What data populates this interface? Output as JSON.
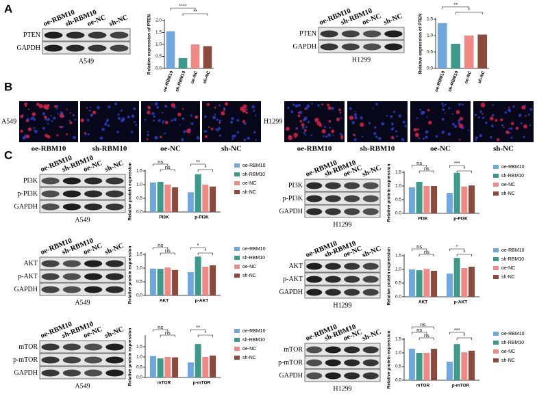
{
  "panel_labels": [
    "A",
    "B",
    "C"
  ],
  "blots": [
    {
      "columns": [
        "oe-RBM10",
        "sh-RBM10",
        "oe-NC",
        "sh-NC"
      ],
      "rows": [
        "PTEN",
        "GAPDH"
      ],
      "caption": "A549"
    },
    {
      "columns": [
        "oe-RBM10",
        "sh-RBM10",
        "oe-NC",
        "sh-NC"
      ],
      "rows": [
        "PTEN",
        "GAPDH"
      ],
      "caption": "H1299"
    },
    {
      "columns": [
        "oe-RBM10",
        "sh-RBM10",
        "oe-NC",
        "sh-NC"
      ],
      "rows": [
        "PI3K",
        "p-PI3K",
        "GAPDH"
      ],
      "caption": "A549"
    },
    {
      "columns": [
        "oe-RBM10",
        "sh-RBM10",
        "oe-NC",
        "sh-NC"
      ],
      "rows": [
        "PI3K",
        "p-PI3K",
        "GAPDH"
      ],
      "caption": "H1299"
    },
    {
      "columns": [
        "oe-RBM10",
        "sh-RBM10",
        "oe-NC",
        "sh-NC"
      ],
      "rows": [
        "AKT",
        "p-AKT",
        "GAPDH"
      ],
      "caption": "A549"
    },
    {
      "columns": [
        "oe-RBM10",
        "sh-RBM10",
        "oe-NC",
        "sh-NC"
      ],
      "rows": [
        "AKT",
        "p-AKT",
        "GAPDH"
      ],
      "caption": "H1299"
    },
    {
      "columns": [
        "oe-RBM10",
        "sh-RBM10",
        "oe-NC",
        "sh-NC"
      ],
      "rows": [
        "mTOR",
        "p-mTOR",
        "GAPDH"
      ],
      "caption": "A549"
    },
    {
      "columns": [
        "oe-RBM10",
        "sh-RBM10",
        "oe-NC",
        "sh-NC"
      ],
      "rows": [
        "mTOR",
        "p-mTOR",
        "GAPDH"
      ],
      "caption": "H1299"
    }
  ],
  "fluorescence": [
    {
      "cell_line": "A549",
      "labels": [
        "oe-RBM10",
        "sh-RBM10",
        "oe-NC",
        "sh-NC"
      ]
    },
    {
      "cell_line": "H1299",
      "labels": [
        "oe-RBM10",
        "sh-RBM10",
        "oe-NC",
        "sh-NC"
      ]
    }
  ],
  "chart_data": [
    {
      "type": "bar",
      "ylabel": "Relative expression of PTEN",
      "categories": [
        "oe-RBM10",
        "sh-RBM10",
        "oe-NC",
        "sh-NC"
      ],
      "values": [
        1.55,
        0.43,
        1.0,
        0.93
      ],
      "colors": [
        "#6fa8dc",
        "#3d9a8b",
        "#f08a84",
        "#8b4a3c"
      ],
      "ylim": [
        0,
        2
      ],
      "yticks": [
        {
          "value": 0,
          "label": "0.0"
        },
        0.5,
        {
          "value": 1,
          "label": "1.0"
        },
        1.5,
        {
          "value": 2,
          "label": "2.0"
        }
      ],
      "annotations": [
        "****",
        "**"
      ]
    },
    {
      "type": "bar",
      "ylabel": "Relative expression of PTEN",
      "categories": [
        "oe-RBM10",
        "sh-RBM10",
        "oe-NC",
        "sh-NC"
      ],
      "values": [
        1.38,
        0.75,
        1.0,
        1.03
      ],
      "colors": [
        "#6fa8dc",
        "#3d9a8b",
        "#f08a84",
        "#8b4a3c"
      ],
      "ylim": [
        0,
        1.5
      ],
      "yticks": [
        {
          "value": 0,
          "label": "0.0"
        },
        0.5,
        {
          "value": 1,
          "label": "1.0"
        },
        1.5
      ],
      "annotations": [
        "**",
        "*"
      ]
    },
    {
      "type": "bar",
      "ylabel": "Relative protein expression",
      "categories": [
        "PI3K",
        "p-PI3K"
      ],
      "series": [
        {
          "name": "oe-RBM10",
          "color": "#6fa8dc",
          "values": [
            1.08,
            0.72
          ]
        },
        {
          "name": "sh-RBM10",
          "color": "#3d9a8b",
          "values": [
            1.1,
            1.38
          ]
        },
        {
          "name": "oe-NC",
          "color": "#f08a84",
          "values": [
            1.0,
            1.0
          ]
        },
        {
          "name": "sh-NC",
          "color": "#8b4a3c",
          "values": [
            0.9,
            0.93
          ]
        }
      ],
      "ylim": [
        0,
        1.5
      ],
      "yticks": [
        {
          "value": 0,
          "label": "0.0"
        },
        0.5,
        {
          "value": 1,
          "label": "1.0"
        },
        1.5
      ],
      "annotations": [
        "ns",
        "ns",
        "**",
        "*"
      ]
    },
    {
      "type": "bar",
      "ylabel": "Relative protein expression",
      "categories": [
        "PI3K",
        "p-PI3K"
      ],
      "series": [
        {
          "name": "oe-RBM10",
          "color": "#6fa8dc",
          "values": [
            0.95,
            0.75
          ]
        },
        {
          "name": "sh-RBM10",
          "color": "#3d9a8b",
          "values": [
            1.15,
            1.48
          ]
        },
        {
          "name": "oe-NC",
          "color": "#f08a84",
          "values": [
            1.0,
            0.98
          ]
        },
        {
          "name": "sh-NC",
          "color": "#8b4a3c",
          "values": [
            1.0,
            1.02
          ]
        }
      ],
      "ylim": [
        0,
        1.5
      ],
      "yticks": [
        {
          "value": 0,
          "label": "0.0"
        },
        0.5,
        {
          "value": 1,
          "label": "1.0"
        },
        1.5
      ],
      "annotations": [
        "ns",
        "ns",
        "***",
        "*"
      ]
    },
    {
      "type": "bar",
      "ylabel": "Relative protein expression",
      "categories": [
        "AKT",
        "p-AKT"
      ],
      "series": [
        {
          "name": "oe-RBM10",
          "color": "#6fa8dc",
          "values": [
            0.98,
            0.85
          ]
        },
        {
          "name": "sh-RBM10",
          "color": "#3d9a8b",
          "values": [
            0.97,
            1.42
          ]
        },
        {
          "name": "oe-NC",
          "color": "#f08a84",
          "values": [
            1.02,
            1.05
          ]
        },
        {
          "name": "sh-NC",
          "color": "#8b4a3c",
          "values": [
            0.93,
            1.1
          ]
        }
      ],
      "ylim": [
        0,
        1.5
      ],
      "yticks": [
        {
          "value": 0,
          "label": "0.0"
        },
        0.5,
        {
          "value": 1,
          "label": "1.0"
        },
        1.5
      ],
      "annotations": [
        "ns",
        "ns",
        "*",
        "*"
      ]
    },
    {
      "type": "bar",
      "ylabel": "Relative protein expression",
      "categories": [
        "AKT",
        "p-AKT"
      ],
      "series": [
        {
          "name": "oe-RBM10",
          "color": "#6fa8dc",
          "values": [
            1.0,
            0.85
          ]
        },
        {
          "name": "sh-RBM10",
          "color": "#3d9a8b",
          "values": [
            0.97,
            1.42
          ]
        },
        {
          "name": "oe-NC",
          "color": "#f08a84",
          "values": [
            1.02,
            1.05
          ]
        },
        {
          "name": "sh-NC",
          "color": "#8b4a3c",
          "values": [
            0.95,
            1.1
          ]
        }
      ],
      "ylim": [
        0,
        1.5
      ],
      "yticks": [
        {
          "value": 0,
          "label": "0.0"
        },
        0.5,
        {
          "value": 1,
          "label": "1.0"
        },
        1.5
      ],
      "annotations": [
        "ns",
        "ns",
        "*",
        "*"
      ]
    },
    {
      "type": "bar",
      "ylabel": "Relative protein expression",
      "categories": [
        "mTOR",
        "p-mTOR"
      ],
      "series": [
        {
          "name": "oe-RBM10",
          "color": "#6fa8dc",
          "values": [
            1.05,
            0.73
          ]
        },
        {
          "name": "sh-RBM10",
          "color": "#3d9a8b",
          "values": [
            0.93,
            1.63
          ]
        },
        {
          "name": "oe-NC",
          "color": "#f08a84",
          "values": [
            1.0,
            1.0
          ]
        },
        {
          "name": "sh-NC",
          "color": "#8b4a3c",
          "values": [
            0.98,
            1.07
          ]
        }
      ],
      "ylim": [
        0,
        2
      ],
      "yticks": [
        {
          "value": 0,
          "label": "0.0"
        },
        0.5,
        {
          "value": 1,
          "label": "1.0"
        },
        1.5
      ],
      "annotations": [
        "ns",
        "ns",
        "**",
        "*"
      ]
    },
    {
      "type": "bar",
      "ylabel": "Relative protein expression",
      "categories": [
        "mTOR",
        "p-mTOR"
      ],
      "series": [
        {
          "name": "oe-RBM10",
          "color": "#6fa8dc",
          "values": [
            1.15,
            0.68
          ]
        },
        {
          "name": "sh-RBM10",
          "color": "#3d9a8b",
          "values": [
            1.0,
            1.32
          ]
        },
        {
          "name": "oe-NC",
          "color": "#f08a84",
          "values": [
            1.0,
            1.02
          ]
        },
        {
          "name": "sh-NC",
          "color": "#8b4a3c",
          "values": [
            1.15,
            1.08
          ]
        }
      ],
      "ylim": [
        0,
        1.5
      ],
      "yticks": [
        {
          "value": 0,
          "label": "0.0"
        },
        0.5,
        {
          "value": 1,
          "label": "1.0"
        },
        1.5
      ],
      "annotations": [
        "ns",
        "ns",
        "ns",
        "***",
        "*"
      ]
    }
  ]
}
